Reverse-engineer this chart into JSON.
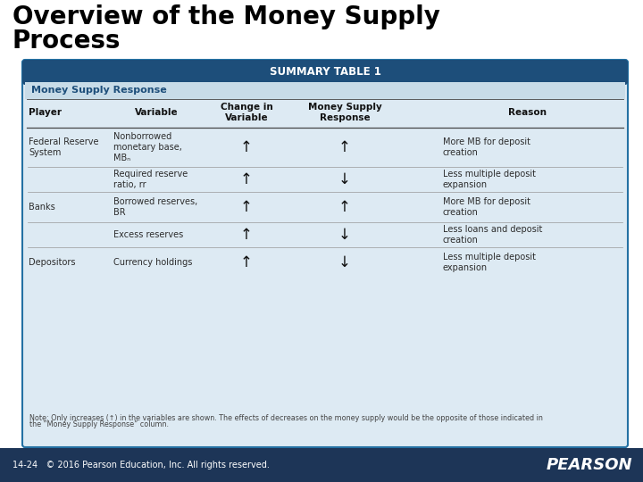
{
  "title_line1": "Overview of the Money Supply",
  "title_line2": "Process",
  "title_fontsize": 20,
  "title_color": "#000000",
  "title_fontweight": "bold",
  "table_title": "SUMMARY TABLE 1",
  "table_subtitle": "Money Supply Response",
  "col_headers": [
    "Player",
    "Variable",
    "Change in\nVariable",
    "Money Supply\nResponse",
    "Reason"
  ],
  "rows": [
    [
      "Federal Reserve\nSystem",
      "Nonborrowed\nmonetary base,\nMBₙ",
      "↑",
      "↑",
      "More MB for deposit\ncreation"
    ],
    [
      "",
      "Required reserve\nratio, rr",
      "↑",
      "↓",
      "Less multiple deposit\nexpansion"
    ],
    [
      "Banks",
      "Borrowed reserves,\nBR",
      "↑",
      "↑",
      "More MB for deposit\ncreation"
    ],
    [
      "",
      "Excess reserves",
      "↑",
      "↓",
      "Less loans and deposit\ncreation"
    ],
    [
      "Depositors",
      "Currency holdings",
      "↑",
      "↓",
      "Less multiple deposit\nexpansion"
    ]
  ],
  "note_line1": "Note: Only increases (↑) in the variables are shown. The effects of decreases on the money supply would be the opposite of those indicated in",
  "note_line2": "the “Money Supply Response” column.",
  "footer_text": "14-24   © 2016 Pearson Education, Inc. All rights reserved.",
  "footer_bg": "#1d3557",
  "footer_text_color": "#ffffff",
  "pearson_text": "PEARSON",
  "pearson_color": "#ffffff",
  "table_header_bg": "#1d4e7a",
  "table_header_text_color": "#ffffff",
  "table_subtitle_bg": "#c8dce8",
  "table_subtitle_text_color": "#1d4e7a",
  "table_bg": "#ddeaf3",
  "table_border_color": "#2471a3",
  "col_header_line_color": "#444444",
  "row_line_color": "#999999",
  "bg_color": "#ffffff"
}
